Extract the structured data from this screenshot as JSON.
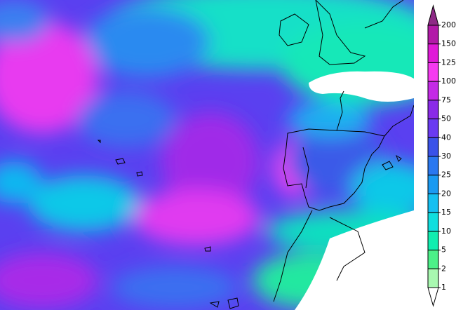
{
  "legend": {
    "levels": [
      {
        "label": 200,
        "color": "#8e2a86"
      },
      {
        "label": 150,
        "color": "#b21aa8"
      },
      {
        "label": 125,
        "color": "#e01ad8"
      },
      {
        "label": 100,
        "color": "#f53af0"
      },
      {
        "label": 75,
        "color": "#c42ae6"
      },
      {
        "label": 50,
        "color": "#8a2ae8"
      },
      {
        "label": 40,
        "color": "#6a3af2"
      },
      {
        "label": 30,
        "color": "#3a52e8"
      },
      {
        "label": 25,
        "color": "#2a78f0"
      },
      {
        "label": 20,
        "color": "#1a9af2"
      },
      {
        "label": 15,
        "color": "#14c0f2"
      },
      {
        "label": 10,
        "color": "#10dede"
      },
      {
        "label": 5,
        "color": "#10eeb0"
      },
      {
        "label": 2,
        "color": "#4cf088"
      },
      {
        "label": 1,
        "color": "#a8f8b0"
      }
    ]
  }
}
